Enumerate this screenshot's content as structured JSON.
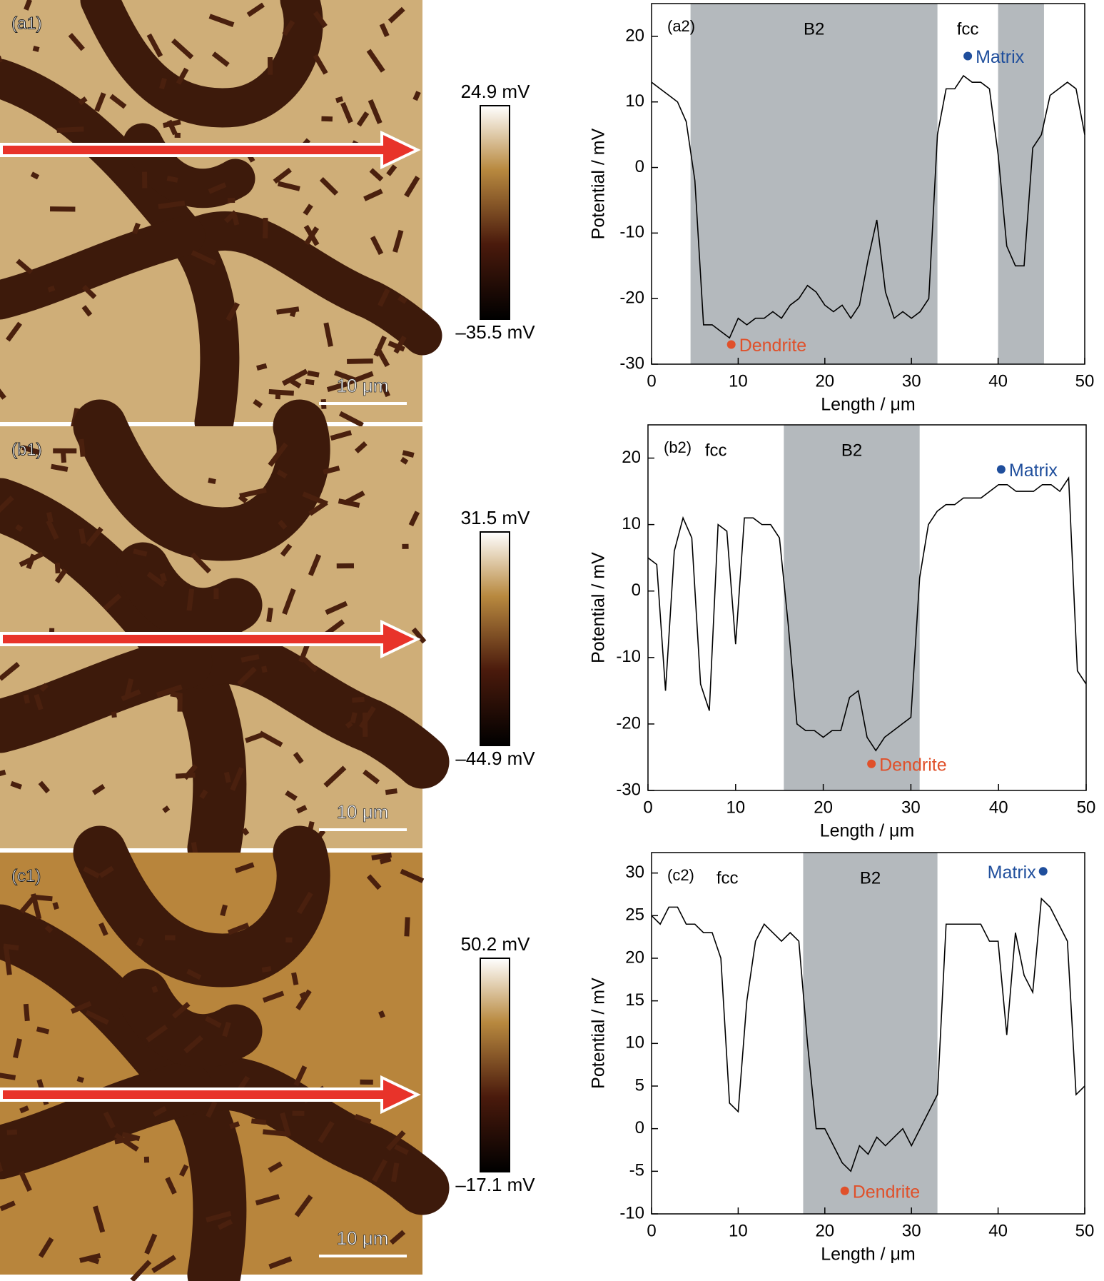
{
  "images": [
    {
      "label": "(a1)",
      "colorbar_max": "24.9 mV",
      "colorbar_min": "–35.5 mV",
      "scale_bar": "10 μm"
    },
    {
      "label": "(b1)",
      "colorbar_max": "31.5 mV",
      "colorbar_min": "–44.9 mV",
      "scale_bar": "10 μm"
    },
    {
      "label": "(c1)",
      "colorbar_max": "50.2 mV",
      "colorbar_min": "–17.1 mV",
      "scale_bar": "10 μm"
    }
  ],
  "chart_data": [
    {
      "type": "line",
      "label": "(a2)",
      "xlabel": "Length / μm",
      "ylabel": "Potential / mV",
      "xlim": [
        0,
        50
      ],
      "ylim": [
        -30,
        25
      ],
      "xticks": [
        0,
        10,
        20,
        30,
        40,
        50
      ],
      "yticks": [
        -30,
        -20,
        -10,
        0,
        10,
        20
      ],
      "regions": [
        {
          "from": 4.5,
          "to": 33,
          "label": "B2",
          "shaded": true
        },
        {
          "from": 33,
          "to": 40,
          "label": "fcc",
          "shaded": false
        },
        {
          "from": 40,
          "to": 45.3,
          "shaded": true
        }
      ],
      "region_color": "#b4b9bd",
      "markers": [
        {
          "name": "Matrix",
          "x": 36.5,
          "y": 17,
          "color": "#1f4e9c"
        },
        {
          "name": "Dendrite",
          "x": 9.2,
          "y": -27,
          "color": "#e0502a"
        }
      ],
      "x": [
        0,
        1,
        2,
        3,
        4,
        5,
        6,
        7,
        8,
        9,
        10,
        11,
        12,
        13,
        14,
        15,
        16,
        17,
        18,
        19,
        20,
        21,
        22,
        23,
        24,
        25,
        26,
        27,
        28,
        29,
        30,
        31,
        32,
        33,
        34,
        35,
        36,
        37,
        38,
        39,
        40,
        41,
        42,
        43,
        44,
        45,
        46,
        47,
        48,
        49,
        50
      ],
      "series": [
        {
          "color": "#000000",
          "values": [
            13,
            12,
            11,
            10,
            7,
            -2,
            -24,
            -24,
            -25,
            -26,
            -23,
            -24,
            -23,
            -23,
            -22,
            -23,
            -21,
            -20,
            -18,
            -19,
            -21,
            -22,
            -21,
            -23,
            -21,
            -14,
            -8,
            -19,
            -23,
            -22,
            -23,
            -22,
            -20,
            5,
            12,
            12,
            14,
            13,
            13,
            12,
            2,
            -12,
            -15,
            -15,
            3,
            5,
            11,
            12,
            13,
            12,
            5
          ]
        }
      ]
    },
    {
      "type": "line",
      "label": "(b2)",
      "xlabel": "Length / μm",
      "ylabel": "Potential / mV",
      "xlim": [
        0,
        50
      ],
      "ylim": [
        -30,
        25
      ],
      "xticks": [
        0,
        10,
        20,
        30,
        40,
        50
      ],
      "yticks": [
        -30,
        -20,
        -10,
        0,
        10,
        20
      ],
      "regions": [
        {
          "from": 0,
          "to": 15.5,
          "label": "fcc",
          "shaded": false
        },
        {
          "from": 15.5,
          "to": 31,
          "label": "B2",
          "shaded": true
        }
      ],
      "region_color": "#b4b9bd",
      "markers": [
        {
          "name": "Matrix",
          "x": 40.3,
          "y": 18.3,
          "color": "#1f4e9c"
        },
        {
          "name": "Dendrite",
          "x": 25.5,
          "y": -26,
          "color": "#e0502a"
        }
      ],
      "x": [
        0,
        1,
        2,
        3,
        4,
        5,
        6,
        7,
        8,
        9,
        10,
        11,
        12,
        13,
        14,
        15,
        16,
        17,
        18,
        19,
        20,
        21,
        22,
        23,
        24,
        25,
        26,
        27,
        28,
        29,
        30,
        31,
        32,
        33,
        34,
        35,
        36,
        37,
        38,
        39,
        40,
        41,
        42,
        43,
        44,
        45,
        46,
        47,
        48,
        49,
        50
      ],
      "series": [
        {
          "color": "#000000",
          "values": [
            5,
            4,
            -15,
            6,
            11,
            8,
            -14,
            -18,
            10,
            9,
            -8,
            11,
            11,
            10,
            10,
            8,
            -5,
            -20,
            -21,
            -21,
            -22,
            -21,
            -21,
            -16,
            -15,
            -22,
            -24,
            -22,
            -21,
            -20,
            -19,
            2,
            10,
            12,
            13,
            13,
            14,
            14,
            14,
            15,
            16,
            16,
            15,
            15,
            15,
            16,
            16,
            15,
            17,
            -12,
            -14
          ]
        }
      ]
    },
    {
      "type": "line",
      "label": "(c2)",
      "xlabel": "Length / μm",
      "ylabel": "Potential / mV",
      "xlim": [
        0,
        50
      ],
      "ylim": [
        -10,
        32.4
      ],
      "xticks": [
        0,
        10,
        20,
        30,
        40,
        50
      ],
      "yticks": [
        -10,
        -5,
        0,
        5,
        10,
        15,
        20,
        25,
        30
      ],
      "regions": [
        {
          "from": 0,
          "to": 17.5,
          "label": "fcc",
          "shaded": false
        },
        {
          "from": 17.5,
          "to": 33,
          "label": "B2",
          "shaded": true
        }
      ],
      "region_color": "#b4b9bd",
      "markers": [
        {
          "name": "Matrix",
          "x": 45.2,
          "y": 30.2,
          "color": "#1f4e9c"
        },
        {
          "name": "Dendrite",
          "x": 22.3,
          "y": -7.3,
          "color": "#e0502a"
        }
      ],
      "x": [
        0,
        1,
        2,
        3,
        4,
        5,
        6,
        7,
        8,
        9,
        10,
        11,
        12,
        13,
        14,
        15,
        16,
        17,
        18,
        19,
        20,
        21,
        22,
        23,
        24,
        25,
        26,
        27,
        28,
        29,
        30,
        31,
        32,
        33,
        34,
        35,
        36,
        37,
        38,
        39,
        40,
        41,
        42,
        43,
        44,
        45,
        46,
        47,
        48,
        49,
        50
      ],
      "series": [
        {
          "color": "#000000",
          "values": [
            25,
            24,
            26,
            26,
            24,
            24,
            23,
            23,
            20,
            3,
            2,
            15,
            22,
            24,
            23,
            22,
            23,
            22,
            10,
            0,
            0,
            -2,
            -4,
            -5,
            -2,
            -3,
            -1,
            -2,
            -1,
            0,
            -2,
            0,
            2,
            4,
            24,
            24,
            24,
            24,
            24,
            22,
            22,
            11,
            23,
            18,
            16,
            27,
            26,
            24,
            22,
            4,
            5
          ]
        }
      ]
    }
  ]
}
